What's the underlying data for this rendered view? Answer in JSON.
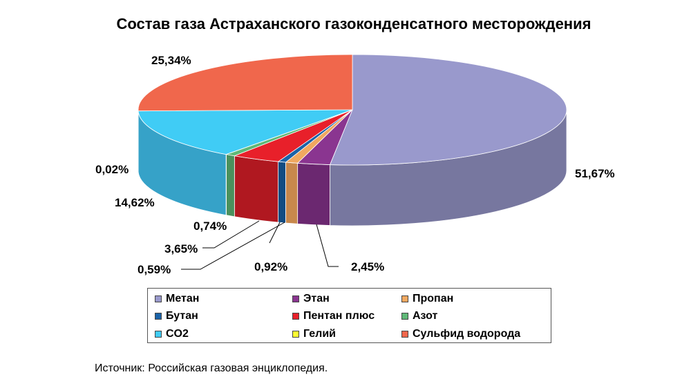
{
  "chart_data": {
    "type": "pie",
    "title": "Состав газа Астраханского газоконденсатного месторождения",
    "slices": [
      {
        "name": "Метан",
        "value": 51.67,
        "label": "51,67%",
        "color": "#9999cc",
        "side": "#77779f"
      },
      {
        "name": "Этан",
        "value": 2.45,
        "label": "2,45%",
        "color": "#8a3590",
        "side": "#6b2870"
      },
      {
        "name": "Пропан",
        "value": 0.92,
        "label": "0,92%",
        "color": "#f0a860",
        "side": "#c8884c"
      },
      {
        "name": "Бутан",
        "value": 0.59,
        "label": "0,59%",
        "color": "#1b63a8",
        "side": "#124c82"
      },
      {
        "name": "Пентан плюс",
        "value": 3.65,
        "label": "3,65%",
        "color": "#e8202a",
        "side": "#b01820"
      },
      {
        "name": "Азот",
        "value": 0.74,
        "label": "0,74%",
        "color": "#5fb877",
        "side": "#4a915d"
      },
      {
        "name": "Гелий",
        "value": 0.02,
        "label": "0,02%",
        "color": "#ffff33",
        "side": "#cccc28"
      },
      {
        "name": "CO2",
        "value": 14.62,
        "label": "14,62%",
        "color": "#40ccf5",
        "side": "#36a2c8"
      },
      {
        "name": "Сульфид водорода",
        "value": 25.34,
        "label": "25,34%",
        "color": "#f0674c",
        "side": "#c8503a"
      }
    ],
    "legend_order": [
      "Метан",
      "Этан",
      "Пропан",
      "Бутан",
      "Пентан плюс",
      "Азот",
      "CO2",
      "Гелий",
      "Сульфид водорода"
    ],
    "legend_position": "bottom"
  },
  "source_text": "Источник: Российская газовая энциклопедия."
}
